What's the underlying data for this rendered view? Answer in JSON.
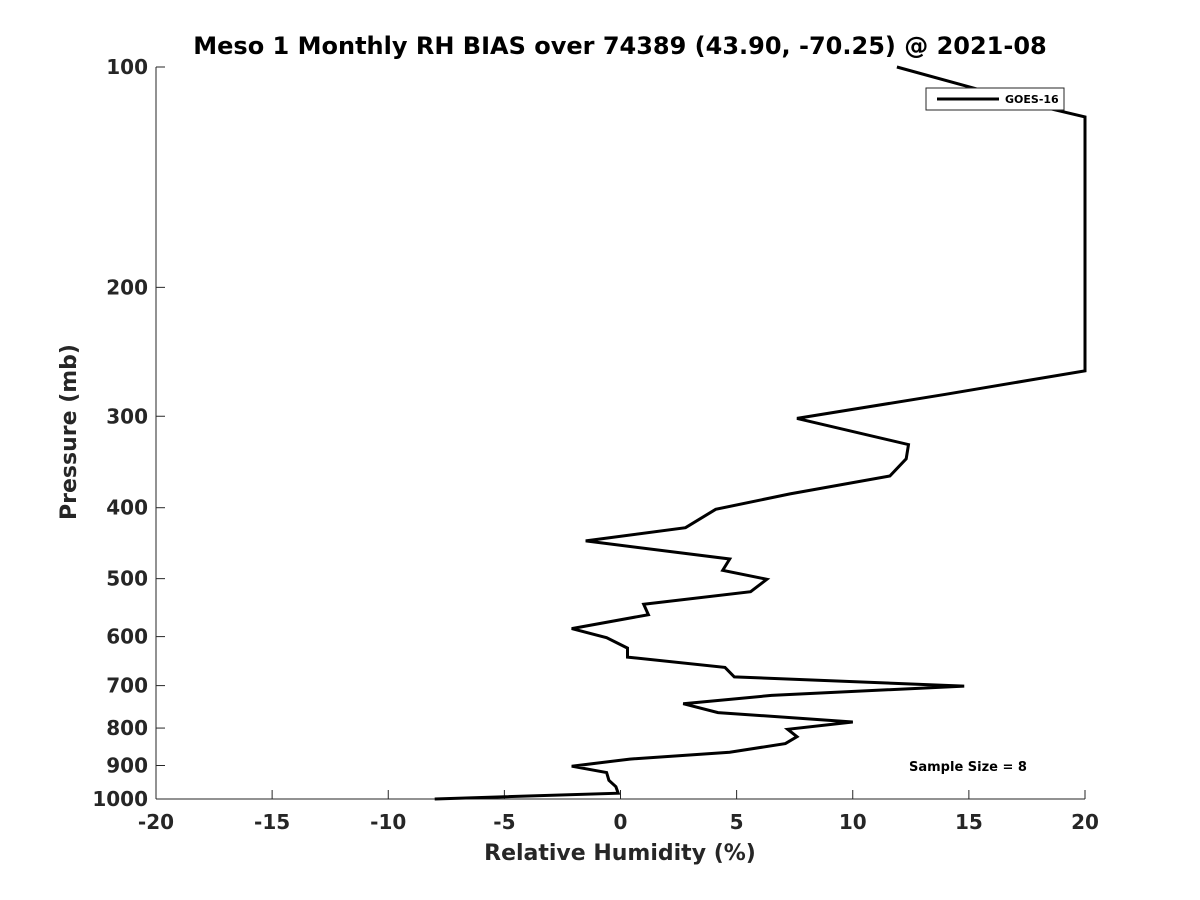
{
  "chart_data": {
    "type": "line",
    "title": "Meso 1 Monthly RH BIAS over 74389 (43.90, -70.25) @ 2021-08",
    "xlabel": "Relative Humidity (%)",
    "ylabel": "Pressure (mb)",
    "xlim": [
      -20,
      20
    ],
    "ylim": [
      100,
      1000
    ],
    "y_scale": "log",
    "y_reversed": true,
    "xticks": [
      -20,
      -15,
      -10,
      -5,
      0,
      5,
      10,
      15,
      20
    ],
    "yticks": [
      100,
      200,
      300,
      400,
      500,
      600,
      700,
      800,
      900,
      1000
    ],
    "grid": false,
    "legend_position": "top-right",
    "annotation": "Sample Size = 8",
    "series": [
      {
        "name": "GOES-16",
        "color": "#000000",
        "points": [
          {
            "x": 11.9,
            "y": 100
          },
          {
            "x": 18.0,
            "y": 113
          },
          {
            "x": 20.0,
            "y": 117
          },
          {
            "x": 20.0,
            "y": 260
          },
          {
            "x": 14.0,
            "y": 280
          },
          {
            "x": 7.6,
            "y": 302
          },
          {
            "x": 12.4,
            "y": 328
          },
          {
            "x": 12.3,
            "y": 343
          },
          {
            "x": 11.6,
            "y": 362
          },
          {
            "x": 7.3,
            "y": 383
          },
          {
            "x": 4.1,
            "y": 402
          },
          {
            "x": 2.8,
            "y": 426
          },
          {
            "x": -1.5,
            "y": 444
          },
          {
            "x": 4.7,
            "y": 470
          },
          {
            "x": 4.4,
            "y": 487
          },
          {
            "x": 6.3,
            "y": 501
          },
          {
            "x": 5.6,
            "y": 521
          },
          {
            "x": 1.0,
            "y": 542
          },
          {
            "x": 1.2,
            "y": 560
          },
          {
            "x": -2.1,
            "y": 585
          },
          {
            "x": -0.6,
            "y": 602
          },
          {
            "x": 0.3,
            "y": 622
          },
          {
            "x": 0.3,
            "y": 640
          },
          {
            "x": 4.5,
            "y": 661
          },
          {
            "x": 4.9,
            "y": 681
          },
          {
            "x": 14.8,
            "y": 701
          },
          {
            "x": 6.5,
            "y": 722
          },
          {
            "x": 2.7,
            "y": 741
          },
          {
            "x": 4.2,
            "y": 762
          },
          {
            "x": 10.0,
            "y": 785
          },
          {
            "x": 7.2,
            "y": 803
          },
          {
            "x": 7.6,
            "y": 822
          },
          {
            "x": 7.1,
            "y": 840
          },
          {
            "x": 4.7,
            "y": 863
          },
          {
            "x": 0.4,
            "y": 882
          },
          {
            "x": -2.1,
            "y": 902
          },
          {
            "x": -0.6,
            "y": 920
          },
          {
            "x": -0.5,
            "y": 943
          },
          {
            "x": -0.2,
            "y": 962
          },
          {
            "x": -0.1,
            "y": 982
          },
          {
            "x": -8.0,
            "y": 1000
          }
        ]
      }
    ]
  }
}
